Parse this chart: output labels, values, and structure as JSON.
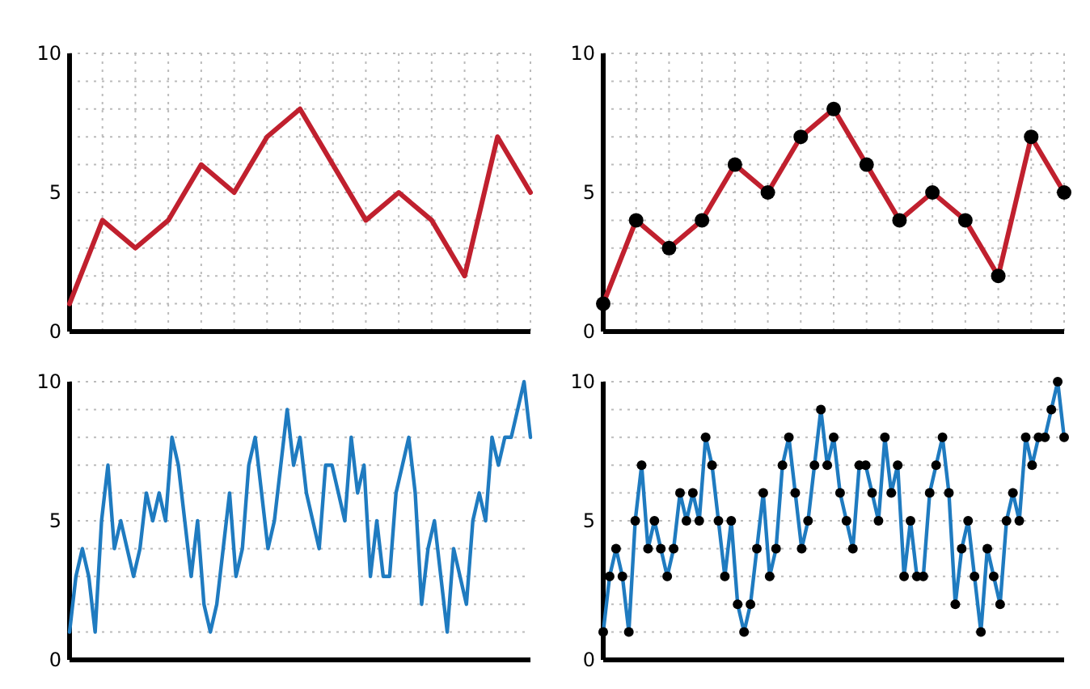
{
  "chart_data": [
    {
      "type": "line",
      "categories": [
        null,
        null,
        null,
        null,
        null,
        null,
        null,
        null,
        null,
        null,
        null,
        null,
        null,
        null,
        null
      ],
      "series": [
        {
          "color": "#c0202e",
          "values": [
            1,
            4,
            3,
            4,
            6,
            5,
            7,
            8,
            6,
            4,
            5,
            4,
            2,
            7,
            5
          ]
        }
      ],
      "ylim": [
        0,
        10
      ],
      "yticks": [
        0,
        {
          "value": 1,
          "label": null
        },
        {
          "value": 2,
          "label": null
        },
        {
          "value": 3,
          "label": null
        },
        {
          "value": 4,
          "label": null
        },
        5,
        {
          "value": 6,
          "label": null
        },
        {
          "value": 7,
          "label": null
        },
        {
          "value": 8,
          "label": null
        },
        {
          "value": 9,
          "label": null
        },
        10
      ],
      "grid": true,
      "marker": "none"
    },
    {
      "type": "line",
      "categories": [
        null,
        null,
        null,
        null,
        null,
        null,
        null,
        null,
        null,
        null,
        null,
        null,
        null,
        null,
        null
      ],
      "series": [
        {
          "color": "#c0202e",
          "values": [
            1,
            4,
            3,
            4,
            6,
            5,
            7,
            8,
            6,
            4,
            5,
            4,
            2,
            7,
            5
          ]
        }
      ],
      "ylim": [
        0,
        10
      ],
      "yticks": [
        0,
        {
          "value": 1,
          "label": null
        },
        {
          "value": 2,
          "label": null
        },
        {
          "value": 3,
          "label": null
        },
        {
          "value": 4,
          "label": null
        },
        5,
        {
          "value": 6,
          "label": null
        },
        {
          "value": 7,
          "label": null
        },
        {
          "value": 8,
          "label": null
        },
        {
          "value": 9,
          "label": null
        },
        10
      ],
      "grid": true,
      "marker": "circle"
    },
    {
      "type": "line",
      "categories": [
        null,
        null,
        null,
        null,
        null,
        null,
        null,
        null,
        null,
        null,
        null,
        null,
        null,
        null,
        null,
        null,
        null,
        null,
        null,
        null,
        null,
        null,
        null,
        null,
        null,
        null,
        null,
        null,
        null,
        null,
        null,
        null,
        null,
        null,
        null,
        null,
        null,
        null,
        null,
        null,
        null,
        null,
        null,
        null,
        null,
        null,
        null,
        null,
        null,
        null,
        null,
        null,
        null,
        null,
        null,
        null,
        null,
        null,
        null,
        null,
        null,
        null,
        null,
        null,
        null,
        null,
        null,
        null,
        null,
        null,
        null,
        null,
        null
      ],
      "series": [
        {
          "color": "#1f7bc0",
          "values": [
            1,
            3,
            4,
            3,
            1,
            5,
            7,
            4,
            5,
            4,
            3,
            4,
            6,
            5,
            6,
            5,
            8,
            7,
            5,
            3,
            5,
            2,
            1,
            2,
            4,
            6,
            3,
            4,
            7,
            8,
            6,
            4,
            5,
            7,
            9,
            7,
            8,
            6,
            5,
            4,
            7,
            7,
            6,
            5,
            8,
            6,
            7,
            3,
            5,
            3,
            3,
            6,
            7,
            8,
            6,
            2,
            4,
            5,
            3,
            1,
            4,
            3,
            2,
            5,
            6,
            5,
            8,
            7,
            8,
            8,
            9,
            10,
            8
          ]
        }
      ],
      "ylim": [
        0,
        10
      ],
      "yticks": [
        0,
        {
          "value": 1,
          "label": null
        },
        {
          "value": 2,
          "label": null
        },
        {
          "value": 3,
          "label": null
        },
        {
          "value": 4,
          "label": null
        },
        5,
        {
          "value": 6,
          "label": null
        },
        {
          "value": 7,
          "label": null
        },
        {
          "value": 8,
          "label": null
        },
        {
          "value": 9,
          "label": null
        },
        10
      ],
      "grid": "y",
      "marker": "none"
    },
    {
      "type": "line",
      "categories": [
        null,
        null,
        null,
        null,
        null,
        null,
        null,
        null,
        null,
        null,
        null,
        null,
        null,
        null,
        null,
        null,
        null,
        null,
        null,
        null,
        null,
        null,
        null,
        null,
        null,
        null,
        null,
        null,
        null,
        null,
        null,
        null,
        null,
        null,
        null,
        null,
        null,
        null,
        null,
        null,
        null,
        null,
        null,
        null,
        null,
        null,
        null,
        null,
        null,
        null,
        null,
        null,
        null,
        null,
        null,
        null,
        null,
        null,
        null,
        null,
        null,
        null,
        null,
        null,
        null,
        null,
        null,
        null,
        null,
        null,
        null,
        null,
        null
      ],
      "series": [
        {
          "color": "#1f7bc0",
          "values": [
            1,
            3,
            4,
            3,
            1,
            5,
            7,
            4,
            5,
            4,
            3,
            4,
            6,
            5,
            6,
            5,
            8,
            7,
            5,
            3,
            5,
            2,
            1,
            2,
            4,
            6,
            3,
            4,
            7,
            8,
            6,
            4,
            5,
            7,
            9,
            7,
            8,
            6,
            5,
            4,
            7,
            7,
            6,
            5,
            8,
            6,
            7,
            3,
            5,
            3,
            3,
            6,
            7,
            8,
            6,
            2,
            4,
            5,
            3,
            1,
            4,
            3,
            2,
            5,
            6,
            5,
            8,
            7,
            8,
            8,
            9,
            10,
            8
          ]
        }
      ],
      "ylim": [
        0,
        10
      ],
      "yticks": [
        0,
        {
          "value": 1,
          "label": null
        },
        {
          "value": 2,
          "label": null
        },
        {
          "value": 3,
          "label": null
        },
        {
          "value": 4,
          "label": null
        },
        5,
        {
          "value": 6,
          "label": null
        },
        {
          "value": 7,
          "label": null
        },
        {
          "value": 8,
          "label": null
        },
        {
          "value": 9,
          "label": null
        },
        10
      ],
      "grid": "y",
      "marker": "circle"
    }
  ]
}
